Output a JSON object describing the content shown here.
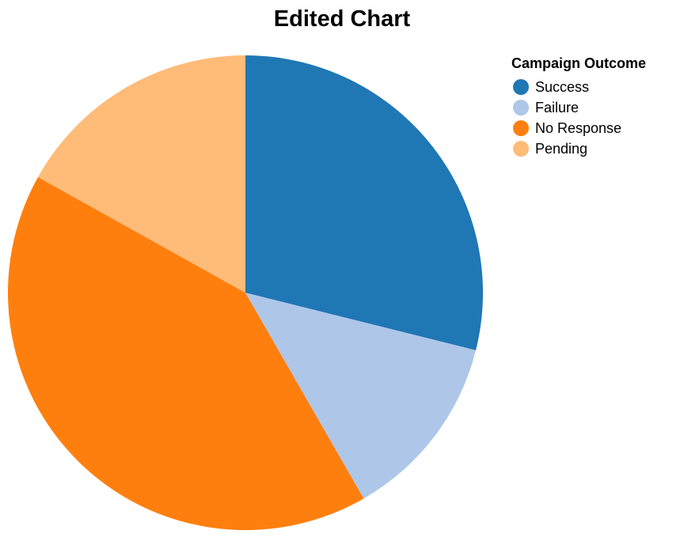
{
  "chart_data": {
    "type": "pie",
    "title": "Edited Chart",
    "legend_title": "Campaign Outcome",
    "legend_position": "top-right",
    "categories": [
      "Success",
      "Failure",
      "No Response",
      "Pending"
    ],
    "values": [
      28.9,
      12.8,
      41.4,
      16.9
    ],
    "colors": [
      "#1f77b4",
      "#aec7e8",
      "#ff7f0e",
      "#ffbb78"
    ]
  }
}
